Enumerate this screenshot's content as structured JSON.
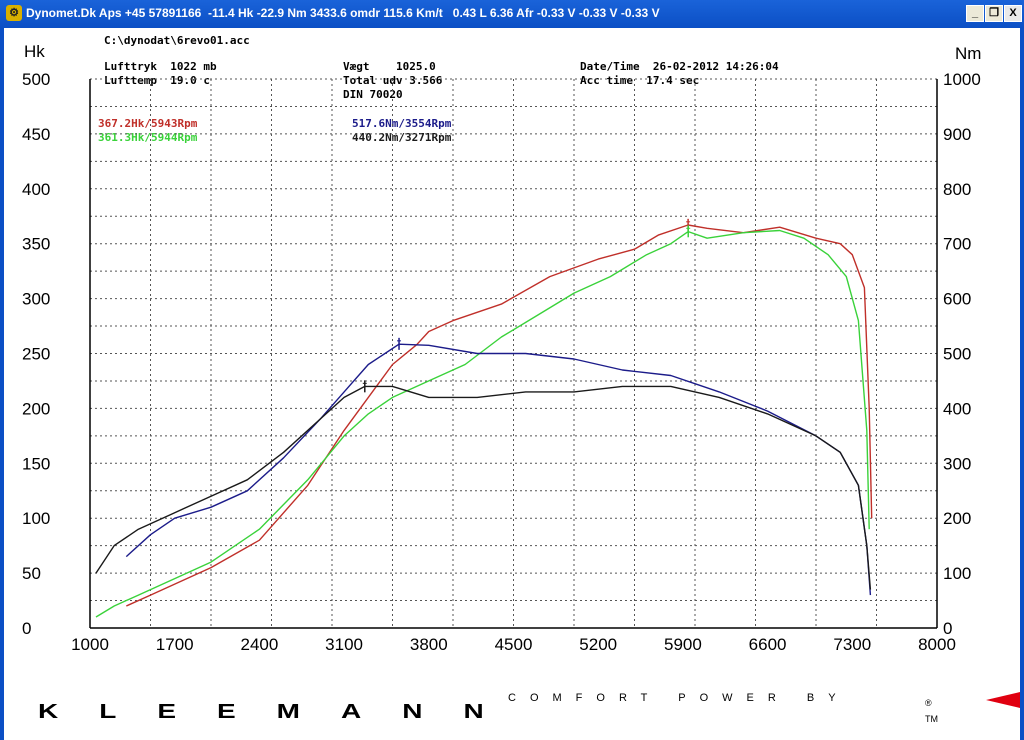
{
  "window": {
    "title": "Dynomet.Dk Aps +45 57891166  -11.4 Hk -22.9 Nm 3433.6 omdr 115.6 Km/t   0.43 L 6.36 Afr -0.33 V -0.33 V -0.33 V",
    "minimize_label": "_",
    "restore_label": "❐",
    "close_label": "X"
  },
  "info": {
    "file": "C:\\dynodat\\6revo01.acc",
    "lufttryk": "Lufttryk  1022 mb",
    "lufttemp": "Lufttemp  19.0 c",
    "vaegt": "Vægt    1025.0",
    "total_udv": "Total udv 3.566",
    "din": "DIN 70020",
    "datetime": "Date/Time  26-02-2012 14:26:04",
    "acctime": "Acc time  17.4 sec"
  },
  "legend": {
    "hk_red": "367.2Hk/5943Rpm",
    "hk_green": "361.3Hk/5944Rpm",
    "nm_blue": "517.6Nm/3554Rpm",
    "nm_black": "440.2Nm/3271Rpm"
  },
  "colors": {
    "red": "#c0302a",
    "green": "#3ad23a",
    "blue": "#1c1c8a",
    "black": "#1a1a1a",
    "grid": "#555555",
    "titlebar": "#0b4fc5"
  },
  "branding": {
    "slogan": "COMFORT POWER BY",
    "brand": "KLEEMANN",
    "tm": "TM",
    "reg": "®"
  },
  "chart_data": {
    "type": "line",
    "left_axis_title": "Hk",
    "right_axis_title": "Nm",
    "x_ticks": [
      1000,
      1700,
      2400,
      3100,
      3800,
      4500,
      5200,
      5900,
      6600,
      7300,
      8000
    ],
    "y_left_ticks": [
      0,
      50,
      100,
      150,
      200,
      250,
      300,
      350,
      400,
      450,
      500
    ],
    "y_right_ticks": [
      0,
      100,
      200,
      300,
      400,
      500,
      600,
      700,
      800,
      900,
      1000
    ],
    "xlim": [
      1000,
      8000
    ],
    "ylim_left": [
      0,
      500
    ],
    "ylim_right": [
      0,
      1000
    ],
    "grid": true,
    "series": [
      {
        "name": "367.2Hk/5943Rpm",
        "axis": "left",
        "color": "#c0302a",
        "x": [
          1300,
          1500,
          1700,
          2000,
          2400,
          2800,
          3100,
          3300,
          3500,
          3700,
          3800,
          4000,
          4400,
          4800,
          5200,
          5500,
          5700,
          5943,
          6100,
          6400,
          6700,
          7000,
          7200,
          7300,
          7400,
          7440,
          7460
        ],
        "y": [
          20,
          30,
          40,
          55,
          80,
          130,
          180,
          210,
          240,
          258,
          270,
          280,
          295,
          320,
          336,
          345,
          358,
          367,
          364,
          360,
          365,
          355,
          350,
          340,
          310,
          200,
          100
        ]
      },
      {
        "name": "361.3Hk/5944Rpm",
        "axis": "left",
        "color": "#3ad23a",
        "x": [
          1050,
          1200,
          1400,
          1700,
          2000,
          2400,
          2800,
          3100,
          3300,
          3500,
          3800,
          4100,
          4400,
          4700,
          5000,
          5300,
          5600,
          5800,
          5944,
          6100,
          6400,
          6700,
          6900,
          7100,
          7250,
          7350,
          7420,
          7440
        ],
        "y": [
          10,
          20,
          30,
          45,
          60,
          90,
          135,
          175,
          195,
          210,
          225,
          240,
          265,
          285,
          305,
          320,
          340,
          350,
          361,
          355,
          360,
          362,
          355,
          340,
          320,
          280,
          180,
          90
        ]
      },
      {
        "name": "517.6Nm/3554Rpm",
        "axis": "right",
        "color": "#1c1c8a",
        "x": [
          1300,
          1500,
          1700,
          2000,
          2300,
          2600,
          2900,
          3100,
          3300,
          3554,
          3800,
          4200,
          4600,
          5000,
          5400,
          5800,
          6200,
          6600,
          7000,
          7200,
          7350,
          7420,
          7450
        ],
        "y": [
          130,
          170,
          200,
          220,
          250,
          310,
          380,
          430,
          480,
          517,
          515,
          500,
          500,
          490,
          470,
          460,
          430,
          395,
          350,
          320,
          260,
          150,
          60
        ]
      },
      {
        "name": "440.2Nm/3271Rpm",
        "axis": "right",
        "color": "#1a1a1a",
        "x": [
          1050,
          1200,
          1400,
          1700,
          2000,
          2300,
          2600,
          2900,
          3100,
          3271,
          3500,
          3800,
          4200,
          4600,
          5000,
          5400,
          5800,
          6200,
          6600,
          7000,
          7200,
          7350,
          7420,
          7450
        ],
        "y": [
          100,
          150,
          180,
          210,
          240,
          270,
          320,
          380,
          420,
          440,
          440,
          420,
          420,
          430,
          430,
          440,
          440,
          420,
          390,
          350,
          320,
          260,
          150,
          70
        ]
      }
    ],
    "markers": [
      {
        "series": 0,
        "x": 5943,
        "y": 367.2
      },
      {
        "series": 1,
        "x": 5944,
        "y": 361.3
      },
      {
        "series": 2,
        "x": 3554,
        "y": 517.6
      },
      {
        "series": 3,
        "x": 3271,
        "y": 440.2
      }
    ]
  }
}
